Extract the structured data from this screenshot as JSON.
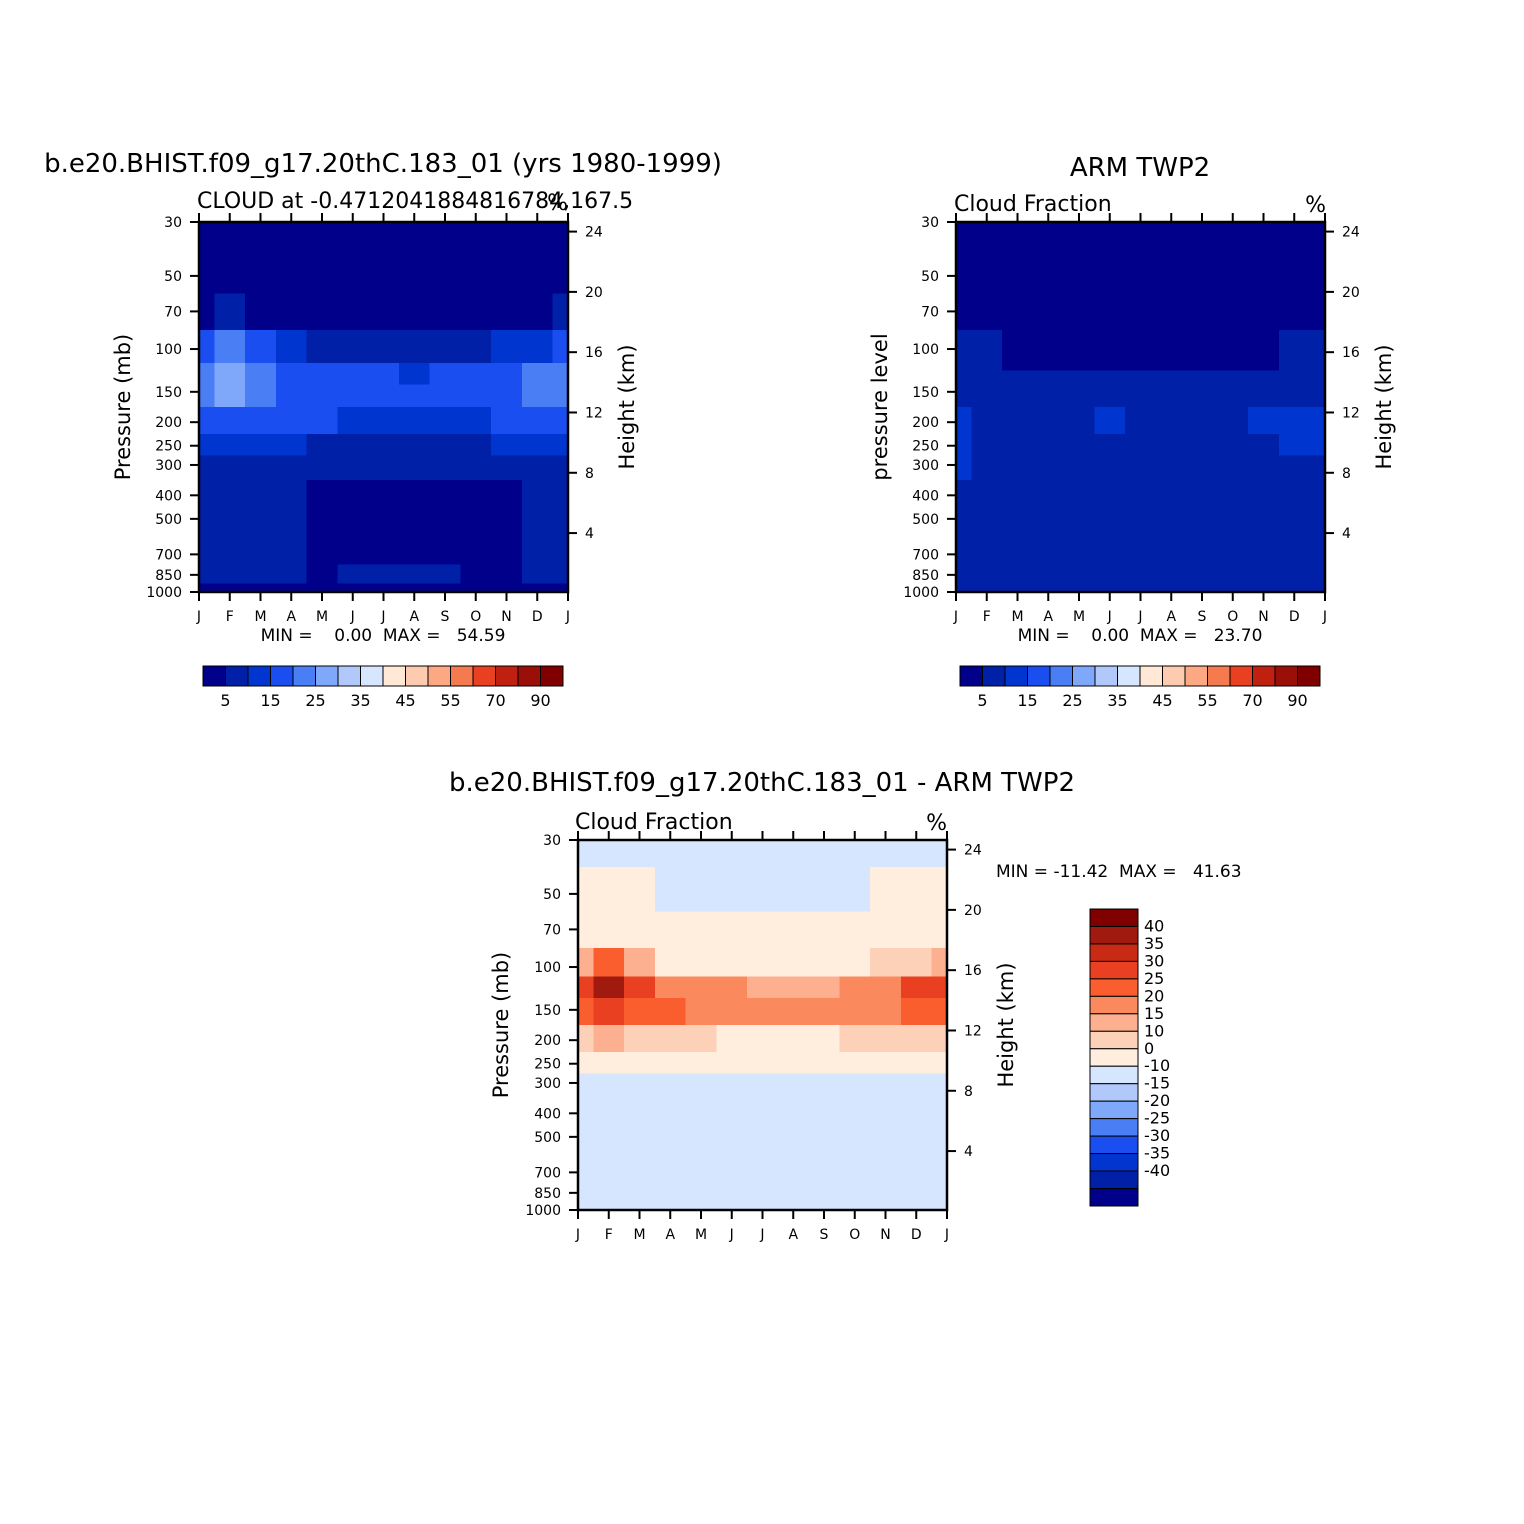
{
  "top_left": {
    "title": "b.e20.BHIST.f09_g17.20thC.183_01 (yrs 1980-1999)",
    "subtitle": "CLOUD at -0.4712041884816784,167.5",
    "unit": "%",
    "ylabel": "Pressure (mb)",
    "ylabel_right": "Height (km)",
    "minmax": "MIN =    0.00  MAX =   54.59"
  },
  "top_right": {
    "title": "ARM TWP2",
    "subtitle": "Cloud Fraction",
    "unit": "%",
    "ylabel": "pressure level",
    "ylabel_right": "Height (km)",
    "minmax": "MIN =    0.00  MAX =   23.70"
  },
  "bottom": {
    "title": "b.e20.BHIST.f09_g17.20thC.183_01 - ARM TWP2",
    "subtitle": "Cloud Fraction",
    "unit": "%",
    "ylabel": "Pressure (mb)",
    "ylabel_right": "Height (km)",
    "minmax": "MIN = -11.42  MAX =   41.63"
  },
  "months": [
    "J",
    "F",
    "M",
    "A",
    "M",
    "J",
    "J",
    "A",
    "S",
    "O",
    "N",
    "D",
    "J"
  ],
  "pressure_ticks": [
    "30",
    "50",
    "70",
    "100",
    "150",
    "200",
    "250",
    "300",
    "400",
    "500",
    "700",
    "850",
    "1000"
  ],
  "height_ticks": [
    "24",
    "20",
    "16",
    "12",
    "8",
    "4"
  ],
  "cloud_colors": [
    "#00008b",
    "#0020a8",
    "#0035d0",
    "#1a4ef0",
    "#4a7ef5",
    "#80a8fa",
    "#b0c8fa",
    "#d6e6ff",
    "#ffe8d6",
    "#fdcbb0",
    "#fca882",
    "#f57a50",
    "#e84020",
    "#c02010",
    "#9a1008",
    "#800000"
  ],
  "cloud_labels": [
    "5",
    "15",
    "25",
    "35",
    "45",
    "55",
    "70",
    "90"
  ],
  "diff_colors": [
    "#800000",
    "#a01a10",
    "#c82a14",
    "#e84020",
    "#fa5d2e",
    "#fa8a5e",
    "#fcb090",
    "#fdd0b8",
    "#ffeedd",
    "#d6e6ff",
    "#b0c8fa",
    "#80a8fa",
    "#4a7ef5",
    "#1a4ef0",
    "#0035d0",
    "#0020a8",
    "#00008b"
  ],
  "diff_labels": [
    "40",
    "35",
    "30",
    "25",
    "20",
    "15",
    "10",
    "0",
    "-10",
    "-15",
    "-20",
    "-25",
    "-30",
    "-35",
    "-40"
  ],
  "chart_data": [
    {
      "type": "heatmap",
      "title": "b.e20.BHIST.f09_g17.20thC.183_01 (yrs 1980-1999)",
      "subtitle": "CLOUD at -0.4712041884816784,167.5",
      "x": [
        "J",
        "F",
        "M",
        "A",
        "M",
        "J",
        "J",
        "A",
        "S",
        "O",
        "N",
        "D",
        "J"
      ],
      "ylabel": "Pressure (mb)",
      "ylim": [
        1000,
        30
      ],
      "min": 0.0,
      "max": 54.59,
      "levels": [
        5,
        15,
        25,
        35,
        45,
        55,
        70,
        90
      ],
      "rows": [
        {
          "p": 30,
          "values": [
            2,
            2,
            2,
            2,
            2,
            2,
            2,
            2,
            2,
            2,
            2,
            2,
            2
          ]
        },
        {
          "p": 50,
          "values": [
            2,
            2,
            2,
            2,
            2,
            2,
            2,
            2,
            2,
            2,
            2,
            2,
            2
          ]
        },
        {
          "p": 70,
          "values": [
            4,
            6,
            3,
            2,
            2,
            2,
            2,
            2,
            2,
            2,
            2,
            3,
            5
          ]
        },
        {
          "p": 100,
          "values": [
            28,
            38,
            30,
            18,
            14,
            12,
            11,
            11,
            12,
            14,
            18,
            24,
            28
          ]
        },
        {
          "p": 130,
          "values": [
            44,
            50,
            42,
            32,
            30,
            28,
            26,
            24,
            26,
            30,
            34,
            40,
            44
          ]
        },
        {
          "p": 150,
          "values": [
            42,
            46,
            38,
            32,
            31,
            30,
            28,
            26,
            28,
            31,
            34,
            40,
            42
          ]
        },
        {
          "p": 200,
          "values": [
            30,
            34,
            28,
            26,
            25,
            24,
            23,
            22,
            23,
            24,
            26,
            28,
            30
          ]
        },
        {
          "p": 250,
          "values": [
            16,
            18,
            16,
            15,
            14,
            13,
            12,
            12,
            13,
            14,
            15,
            16,
            16
          ]
        },
        {
          "p": 300,
          "values": [
            9,
            10,
            9,
            8,
            7,
            6,
            5,
            5,
            6,
            7,
            8,
            9,
            9
          ]
        },
        {
          "p": 400,
          "values": [
            6,
            6,
            6,
            6,
            3,
            2,
            2,
            2,
            2,
            3,
            4,
            6,
            6
          ]
        },
        {
          "p": 500,
          "values": [
            6,
            6,
            6,
            6,
            3,
            2,
            2,
            2,
            2,
            2,
            3,
            6,
            6
          ]
        },
        {
          "p": 700,
          "values": [
            6,
            7,
            6,
            5,
            3,
            2,
            2,
            2,
            2,
            2,
            3,
            5,
            6
          ]
        },
        {
          "p": 850,
          "values": [
            7,
            7,
            7,
            6,
            4,
            5,
            5,
            5,
            5,
            4,
            4,
            6,
            7
          ]
        },
        {
          "p": 1000,
          "values": [
            2,
            2,
            2,
            2,
            2,
            2,
            2,
            2,
            2,
            2,
            2,
            2,
            2
          ]
        }
      ]
    },
    {
      "type": "heatmap",
      "title": "ARM TWP2",
      "subtitle": "Cloud Fraction",
      "x": [
        "J",
        "F",
        "M",
        "A",
        "M",
        "J",
        "J",
        "A",
        "S",
        "O",
        "N",
        "D",
        "J"
      ],
      "ylabel": "pressure level",
      "ylim": [
        1000,
        30
      ],
      "min": 0.0,
      "max": 23.7,
      "levels": [
        5,
        15,
        25,
        35,
        45,
        55,
        70,
        90
      ],
      "rows": [
        {
          "p": 30,
          "values": [
            1,
            1,
            1,
            1,
            1,
            1,
            1,
            1,
            1,
            1,
            1,
            1,
            1
          ]
        },
        {
          "p": 50,
          "values": [
            1,
            1,
            1,
            1,
            1,
            1,
            1,
            1,
            1,
            1,
            1,
            1,
            1
          ]
        },
        {
          "p": 70,
          "values": [
            1,
            1,
            1,
            1,
            1,
            1,
            1,
            1,
            1,
            1,
            1,
            1,
            2
          ]
        },
        {
          "p": 100,
          "values": [
            8,
            6,
            4,
            2,
            2,
            2,
            3,
            2,
            2,
            3,
            4,
            6,
            12
          ]
        },
        {
          "p": 150,
          "values": [
            14,
            12,
            10,
            10,
            11,
            12,
            11,
            10,
            9,
            10,
            12,
            13,
            14
          ]
        },
        {
          "p": 200,
          "values": [
            18,
            14,
            12,
            12,
            13,
            15,
            14,
            13,
            12,
            14,
            15,
            16,
            17
          ]
        },
        {
          "p": 250,
          "values": [
            17,
            13,
            12,
            12,
            12,
            13,
            13,
            12,
            12,
            13,
            14,
            15,
            15
          ]
        },
        {
          "p": 300,
          "values": [
            15,
            10,
            12,
            11,
            11,
            12,
            12,
            10,
            9,
            11,
            12,
            13,
            13
          ]
        },
        {
          "p": 400,
          "values": [
            14,
            11,
            12,
            8,
            8,
            9,
            9,
            7,
            5,
            5,
            10,
            12,
            12
          ]
        },
        {
          "p": 500,
          "values": [
            13,
            11,
            12,
            8,
            8,
            9,
            9,
            7,
            5,
            5,
            10,
            8,
            11
          ]
        },
        {
          "p": 700,
          "values": [
            10,
            10,
            8,
            7,
            6,
            7,
            6,
            7,
            6,
            5,
            8,
            9,
            10
          ]
        },
        {
          "p": 850,
          "values": [
            8,
            7,
            6,
            6,
            6,
            6,
            6,
            6,
            6,
            6,
            6,
            7,
            8
          ]
        },
        {
          "p": 1000,
          "values": [
            6,
            6,
            6,
            6,
            6,
            6,
            6,
            6,
            6,
            6,
            6,
            6,
            6
          ]
        }
      ]
    },
    {
      "type": "heatmap",
      "title": "b.e20.BHIST.f09_g17.20thC.183_01 - ARM TWP2",
      "subtitle": "Cloud Fraction",
      "x": [
        "J",
        "F",
        "M",
        "A",
        "M",
        "J",
        "J",
        "A",
        "S",
        "O",
        "N",
        "D",
        "J"
      ],
      "ylabel": "Pressure (mb)",
      "ylim": [
        1000,
        30
      ],
      "min": -11.42,
      "max": 41.63,
      "levels": [
        -40,
        -35,
        -30,
        -25,
        -20,
        -15,
        -10,
        0,
        10,
        15,
        20,
        25,
        30,
        35,
        40
      ],
      "rows": [
        {
          "p": 30,
          "values": [
            -2,
            -2,
            -2,
            -2,
            -2,
            -2,
            -2,
            -2,
            -2,
            -2,
            -2,
            -2,
            -2
          ]
        },
        {
          "p": 50,
          "values": [
            2,
            2,
            2,
            -2,
            -2,
            -2,
            -2,
            -2,
            -2,
            -2,
            2,
            2,
            2
          ]
        },
        {
          "p": 70,
          "values": [
            3,
            3,
            2,
            2,
            2,
            2,
            2,
            2,
            2,
            2,
            2,
            3,
            3
          ]
        },
        {
          "p": 100,
          "values": [
            18,
            26,
            16,
            9,
            8,
            7,
            6,
            6,
            7,
            8,
            10,
            14,
            18
          ]
        },
        {
          "p": 120,
          "values": [
            32,
            40,
            30,
            24,
            22,
            20,
            18,
            17,
            18,
            20,
            24,
            30,
            32
          ]
        },
        {
          "p": 150,
          "values": [
            28,
            34,
            28,
            26,
            24,
            22,
            24,
            22,
            24,
            22,
            24,
            27,
            28
          ]
        },
        {
          "p": 200,
          "values": [
            12,
            16,
            14,
            12,
            10,
            9,
            9,
            9,
            9,
            10,
            10,
            12,
            12
          ]
        },
        {
          "p": 250,
          "values": [
            4,
            5,
            4,
            3,
            3,
            2,
            2,
            2,
            2,
            2,
            3,
            4,
            4
          ]
        },
        {
          "p": 300,
          "values": [
            -2,
            -2,
            -2,
            -2,
            -2,
            -2,
            -2,
            -2,
            -2,
            -2,
            -2,
            -2,
            -2
          ]
        },
        {
          "p": 400,
          "values": [
            -2,
            -2,
            -2,
            -2,
            -2,
            -2,
            -2,
            -2,
            -2,
            -2,
            -2,
            -2,
            -2
          ]
        },
        {
          "p": 500,
          "values": [
            -2,
            -5,
            -2,
            -2,
            -2,
            -2,
            -2,
            -2,
            -2,
            -2,
            -2,
            -2,
            -2
          ]
        },
        {
          "p": 700,
          "values": [
            -2,
            -2,
            -2,
            -2,
            -2,
            -2,
            -2,
            -2,
            -2,
            -2,
            -2,
            -2,
            -2
          ]
        },
        {
          "p": 850,
          "values": [
            -2,
            -2,
            -2,
            -2,
            -2,
            -2,
            -2,
            -2,
            -2,
            -2,
            -2,
            -2,
            -2
          ]
        },
        {
          "p": 1000,
          "values": [
            -2,
            -2,
            -2,
            -2,
            -2,
            -2,
            -2,
            -2,
            -2,
            -2,
            -2,
            -2,
            -2
          ]
        }
      ]
    }
  ]
}
